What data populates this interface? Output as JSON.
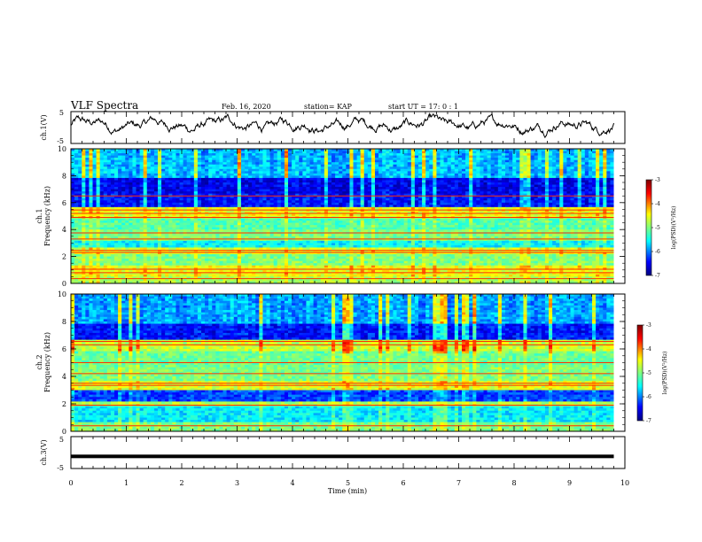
{
  "header": {
    "title": "VLF Spectra",
    "date": "Feb. 16, 2020",
    "station": "station= KAP",
    "start": "start  UT =   17: 0  : 1"
  },
  "chart_data": [
    {
      "type": "line",
      "ylabel": "ch.1(V)",
      "ylim": [
        -5,
        5
      ],
      "y_ticks": [
        "5",
        "-5"
      ],
      "xlim": [
        0,
        10
      ],
      "trace_mean_volts": 0.8,
      "trace_spread_volts": 2.5,
      "trace_end_min": 9.8
    },
    {
      "type": "heatmap",
      "ylabel_top": "ch.1",
      "ylabel": "Frequency (kHz)",
      "ylim": [
        0,
        10
      ],
      "y_ticks": [
        "0",
        "2",
        "4",
        "6",
        "8",
        "10"
      ],
      "xlim": [
        0,
        10
      ],
      "data_end_min": 9.8,
      "intensity_bands": [
        {
          "from_khz": 0.0,
          "to_khz": 0.5,
          "level": 0.55
        },
        {
          "from_khz": 0.5,
          "to_khz": 1.3,
          "level": 0.62
        },
        {
          "from_khz": 1.3,
          "to_khz": 2.2,
          "level": 0.5
        },
        {
          "from_khz": 2.2,
          "to_khz": 2.6,
          "level": 0.6
        },
        {
          "from_khz": 2.6,
          "to_khz": 3.2,
          "level": 0.36
        },
        {
          "from_khz": 3.2,
          "to_khz": 4.0,
          "level": 0.5
        },
        {
          "from_khz": 4.0,
          "to_khz": 4.8,
          "level": 0.45
        },
        {
          "from_khz": 4.8,
          "to_khz": 5.6,
          "level": 0.62
        },
        {
          "from_khz": 5.6,
          "to_khz": 6.6,
          "level": 0.15
        },
        {
          "from_khz": 6.6,
          "to_khz": 7.8,
          "level": 0.12
        },
        {
          "from_khz": 7.8,
          "to_khz": 10.0,
          "level": 0.3
        }
      ],
      "lines_khz": [
        0.35,
        0.8,
        1.05,
        2.3,
        2.45,
        3.3,
        3.75,
        4.9,
        5.2,
        5.45,
        6.5
      ]
    },
    {
      "type": "heatmap",
      "ylabel_top": "ch.2",
      "ylabel": "Frequency (kHz)",
      "ylim": [
        0,
        10
      ],
      "y_ticks": [
        "0",
        "2",
        "4",
        "6",
        "8",
        "10"
      ],
      "xlim": [
        0,
        10
      ],
      "data_end_min": 9.8,
      "intensity_bands": [
        {
          "from_khz": 0.0,
          "to_khz": 0.6,
          "level": 0.5
        },
        {
          "from_khz": 0.6,
          "to_khz": 1.8,
          "level": 0.35
        },
        {
          "from_khz": 1.8,
          "to_khz": 2.2,
          "level": 0.55
        },
        {
          "from_khz": 2.2,
          "to_khz": 3.0,
          "level": 0.2
        },
        {
          "from_khz": 3.0,
          "to_khz": 3.6,
          "level": 0.6
        },
        {
          "from_khz": 3.6,
          "to_khz": 4.6,
          "level": 0.5
        },
        {
          "from_khz": 4.6,
          "to_khz": 5.8,
          "level": 0.48
        },
        {
          "from_khz": 5.8,
          "to_khz": 6.6,
          "level": 0.58
        },
        {
          "from_khz": 6.6,
          "to_khz": 7.8,
          "level": 0.15
        },
        {
          "from_khz": 7.8,
          "to_khz": 10.0,
          "level": 0.28
        }
      ],
      "lines_khz": [
        0.4,
        1.9,
        3.35,
        3.5,
        4.2,
        5.0,
        6.3,
        6.55
      ]
    },
    {
      "type": "line",
      "ylabel": "ch.3(V)",
      "ylim": [
        -5,
        5
      ],
      "y_ticks": [
        "5",
        "-5"
      ],
      "xlim": [
        0,
        10
      ],
      "trace_mean_volts": -1.2,
      "trace_end_min": 9.8,
      "xlabel": "Time (min)",
      "x_ticks": [
        "0",
        "1",
        "2",
        "3",
        "4",
        "5",
        "6",
        "7",
        "8",
        "9",
        "10"
      ]
    }
  ],
  "colorbar": {
    "label": "log(PSD)(V²/Hz)",
    "range": [
      -7,
      -3
    ],
    "ticks": [
      "-3",
      "-4",
      "-5",
      "-6",
      "-7"
    ],
    "colormap": [
      "#00007f",
      "#0000ff",
      "#00ffff",
      "#7fff7f",
      "#ffff00",
      "#ff0000",
      "#7f0000"
    ]
  }
}
